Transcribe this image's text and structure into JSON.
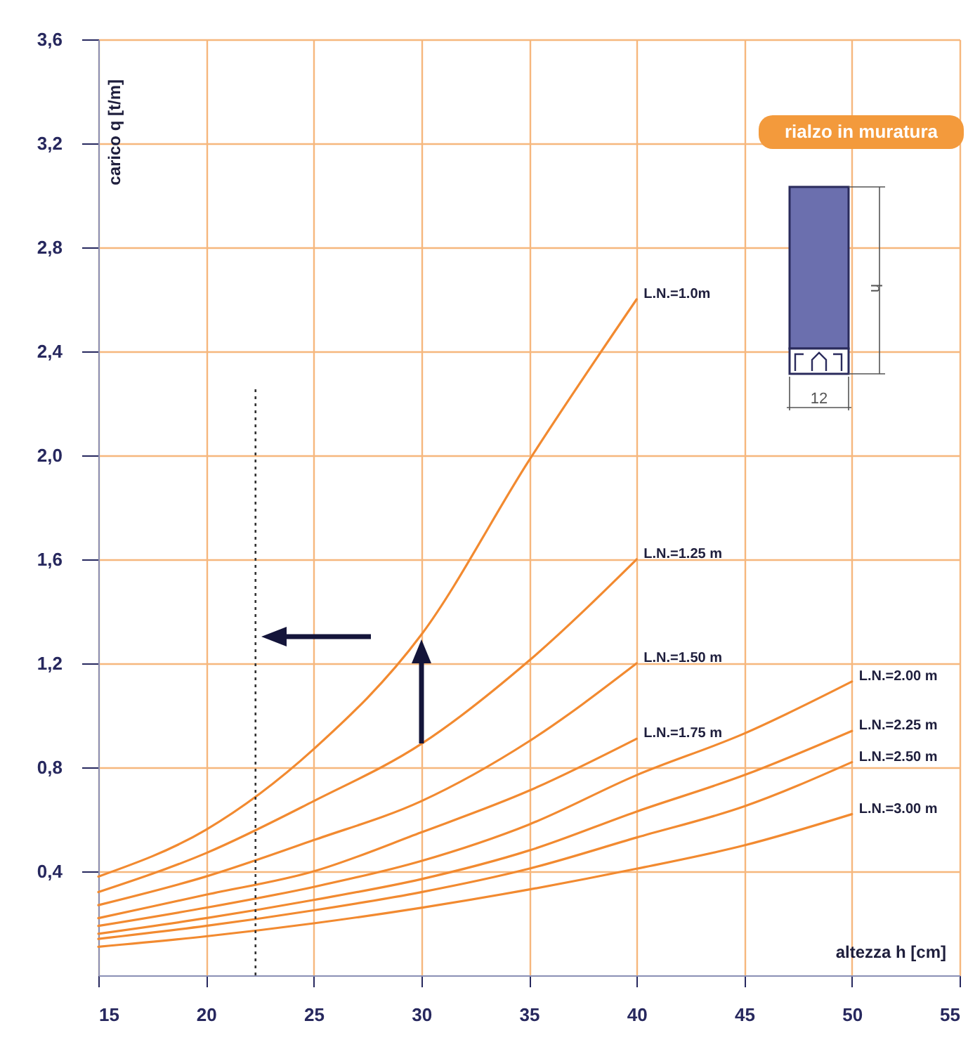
{
  "chart_data": {
    "type": "line",
    "xlabel": "altezza  h [cm]",
    "ylabel": "carico q [t/m]",
    "x": [
      15,
      20,
      25,
      30,
      35,
      40,
      45,
      50
    ],
    "series": [
      {
        "name": "L.N.=1.0m",
        "color": "#f28a30",
        "values": [
          0.38,
          0.56,
          0.87,
          1.31,
          1.98,
          2.6,
          null,
          null
        ]
      },
      {
        "name": "L.N.=1.25 m",
        "color": "#f28a30",
        "values": [
          0.32,
          0.47,
          0.67,
          0.89,
          1.21,
          1.6,
          null,
          null
        ]
      },
      {
        "name": "L.N.=1.50 m",
        "color": "#f28a30",
        "values": [
          0.27,
          0.38,
          0.52,
          0.67,
          0.9,
          1.2,
          null,
          null
        ]
      },
      {
        "name": "L.N.=1.75 m",
        "color": "#f28a30",
        "values": [
          0.22,
          0.31,
          0.4,
          0.55,
          0.71,
          0.91,
          null,
          null
        ]
      },
      {
        "name": "L.N.=2.00 m",
        "color": "#f28a30",
        "values": [
          0.19,
          0.26,
          0.34,
          0.44,
          0.58,
          0.77,
          0.93,
          1.13
        ]
      },
      {
        "name": "L.N.=2.25 m",
        "color": "#f28a30",
        "values": [
          0.16,
          0.22,
          0.29,
          0.37,
          0.48,
          0.63,
          0.77,
          0.94
        ]
      },
      {
        "name": "L.N.=2.50 m",
        "color": "#f28a30",
        "values": [
          0.14,
          0.19,
          0.25,
          0.32,
          0.41,
          0.53,
          0.65,
          0.82
        ]
      },
      {
        "name": "L.N.=3.00 m",
        "color": "#f28a30",
        "values": [
          0.11,
          0.15,
          0.2,
          0.26,
          0.33,
          0.41,
          0.5,
          0.62
        ]
      }
    ],
    "xlim": [
      15,
      55
    ],
    "xticks": [
      15,
      20,
      25,
      30,
      35,
      40,
      45,
      50,
      55
    ],
    "ylim": [
      0,
      3.6
    ],
    "yticks": [
      {
        "value": 0.4,
        "label": "0,4"
      },
      {
        "value": 0.8,
        "label": "0,8"
      },
      {
        "value": 1.2,
        "label": "1,2"
      },
      {
        "value": 1.6,
        "label": "1,6"
      },
      {
        "value": 2.0,
        "label": "2,0"
      },
      {
        "value": 2.4,
        "label": "2,4"
      },
      {
        "value": 2.8,
        "label": "2,8"
      },
      {
        "value": 3.2,
        "label": "3,2"
      },
      {
        "value": 3.6,
        "label": "3,6"
      }
    ],
    "ref_lines": [
      {
        "axis": "x",
        "value": 22.3,
        "color": "#333333",
        "line_style": "dotted"
      }
    ],
    "grid": true,
    "legend": false,
    "marker": "none",
    "line_style": "solid",
    "annotations": [
      "rialzo in muratura",
      "h",
      "12"
    ]
  }
}
